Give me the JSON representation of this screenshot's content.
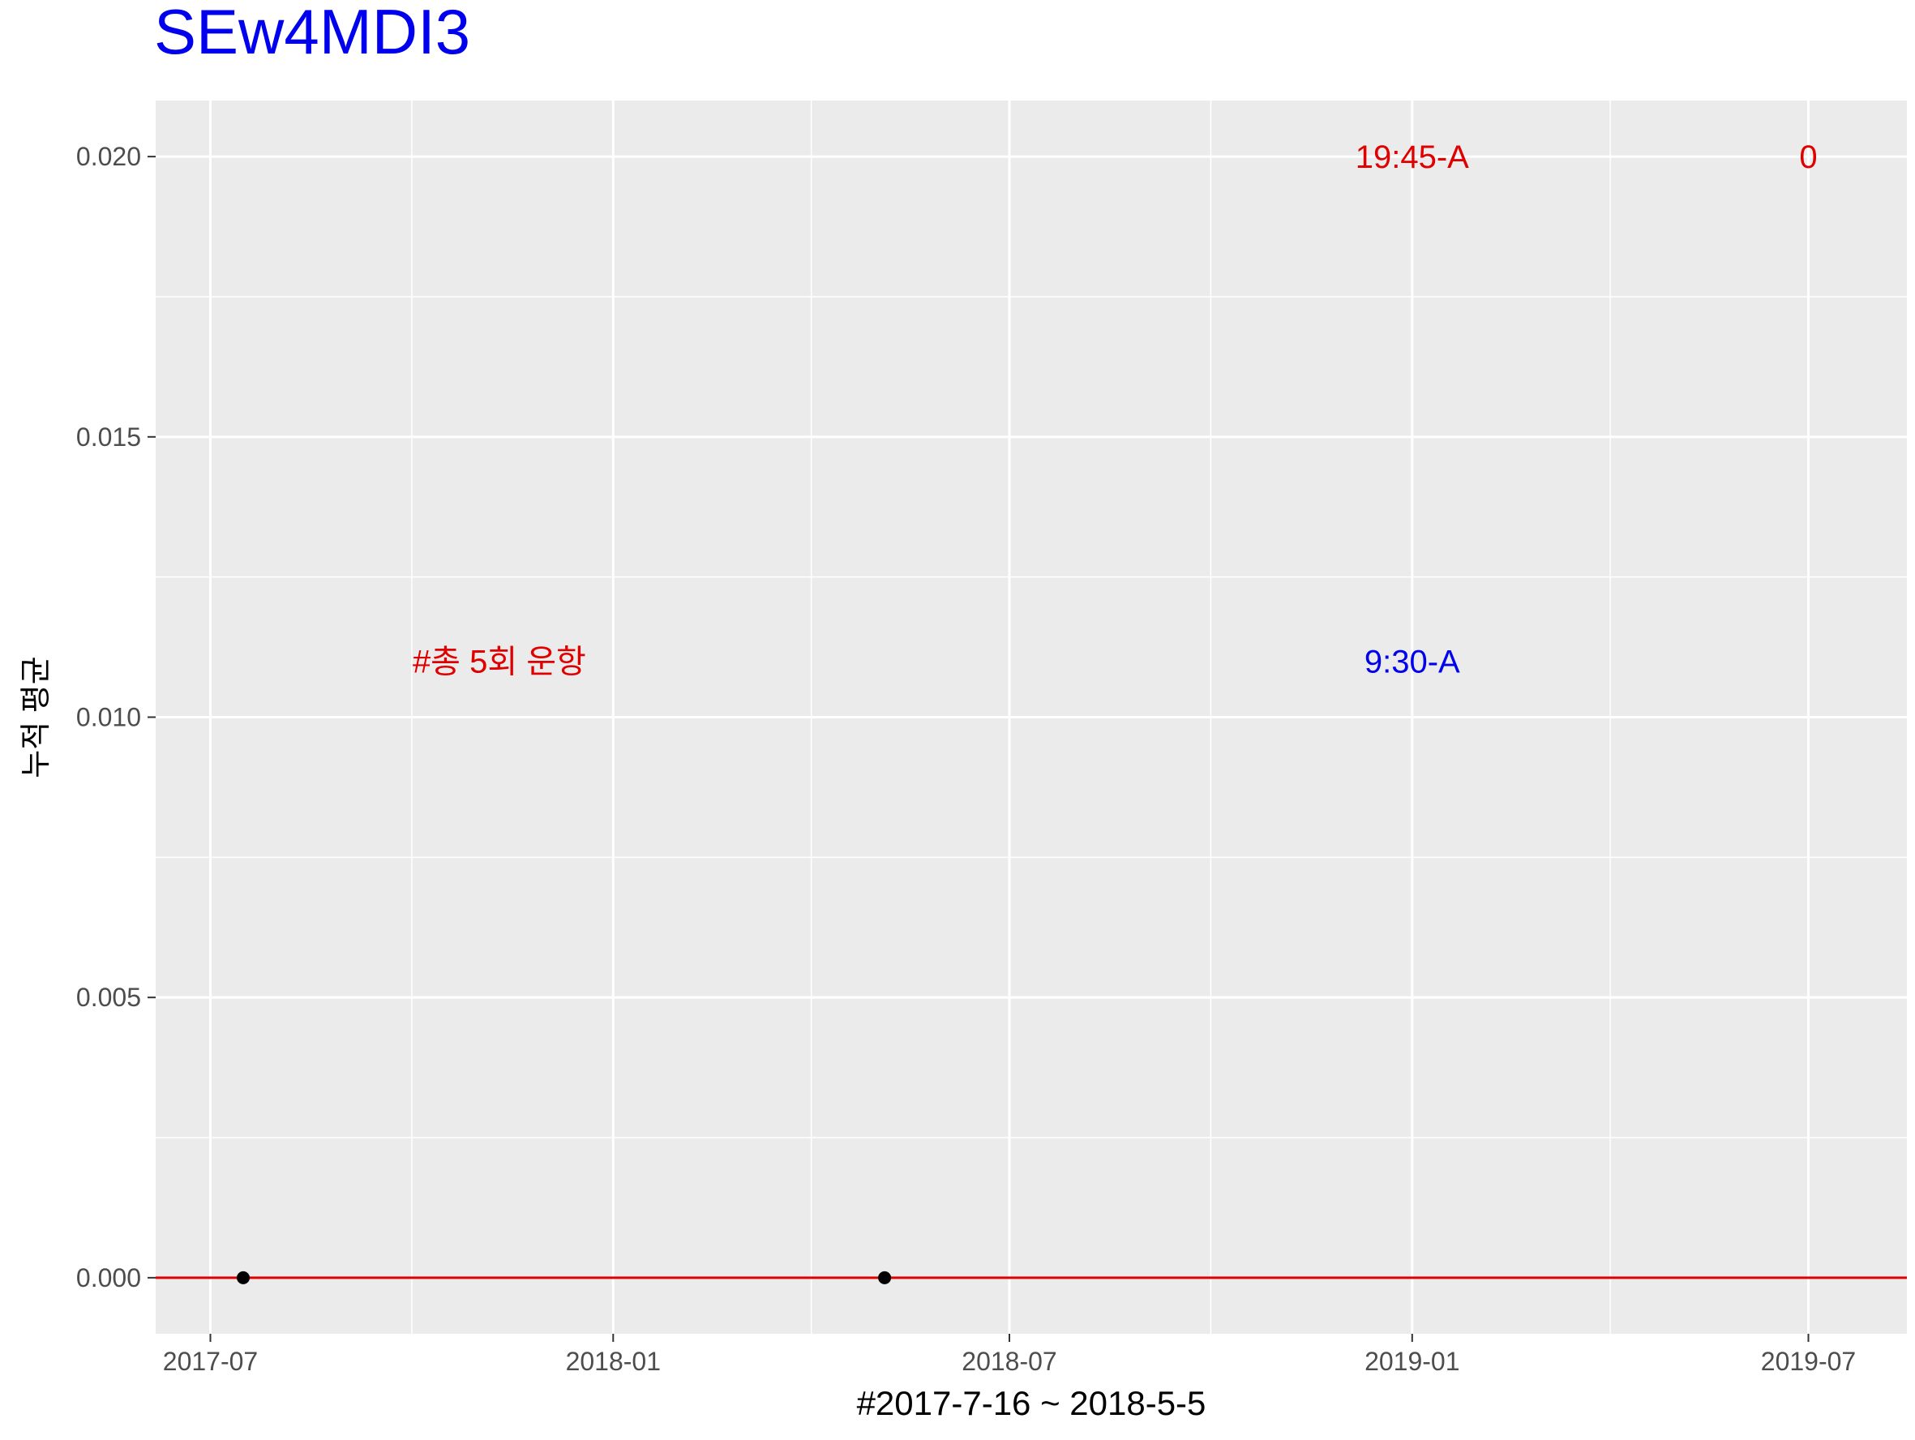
{
  "chart_data": {
    "type": "scatter",
    "title": "SEw4MDI3",
    "xlabel": "#2017-7-16 ~ 2018-5-5",
    "ylabel": "누적 평균",
    "x_ticks": [
      "2017-07",
      "2018-01",
      "2018-07",
      "2019-01",
      "2019-07"
    ],
    "y_ticks": [
      "0.000",
      "0.005",
      "0.010",
      "0.015",
      "0.020"
    ],
    "xlim": [
      "2017-06-06",
      "2019-08-15"
    ],
    "ylim": [
      -0.001,
      0.021
    ],
    "grid": true,
    "points": [
      {
        "x": "2017-07-16",
        "y": 0
      },
      {
        "x": "2018-05-05",
        "y": 0
      }
    ],
    "hline": {
      "y": 0,
      "color": "#e00000"
    },
    "annotations": [
      {
        "text": "#총 5회 운항",
        "x": "2017-11-10",
        "y": 0.011,
        "color": "#e00000"
      },
      {
        "text": "9:30-A",
        "x": "2019-01-01",
        "y": 0.011,
        "color": "#0000ee"
      },
      {
        "text": "19:45-A",
        "x": "2019-01-01",
        "y": 0.02,
        "color": "#e00000"
      },
      {
        "text": "0",
        "x": "2019-07-01",
        "y": 0.02,
        "color": "#e00000"
      }
    ],
    "colors": {
      "title": "#0000ee",
      "panel": "#ebebeb",
      "grid": "#ffffff",
      "point": "#000000"
    }
  }
}
